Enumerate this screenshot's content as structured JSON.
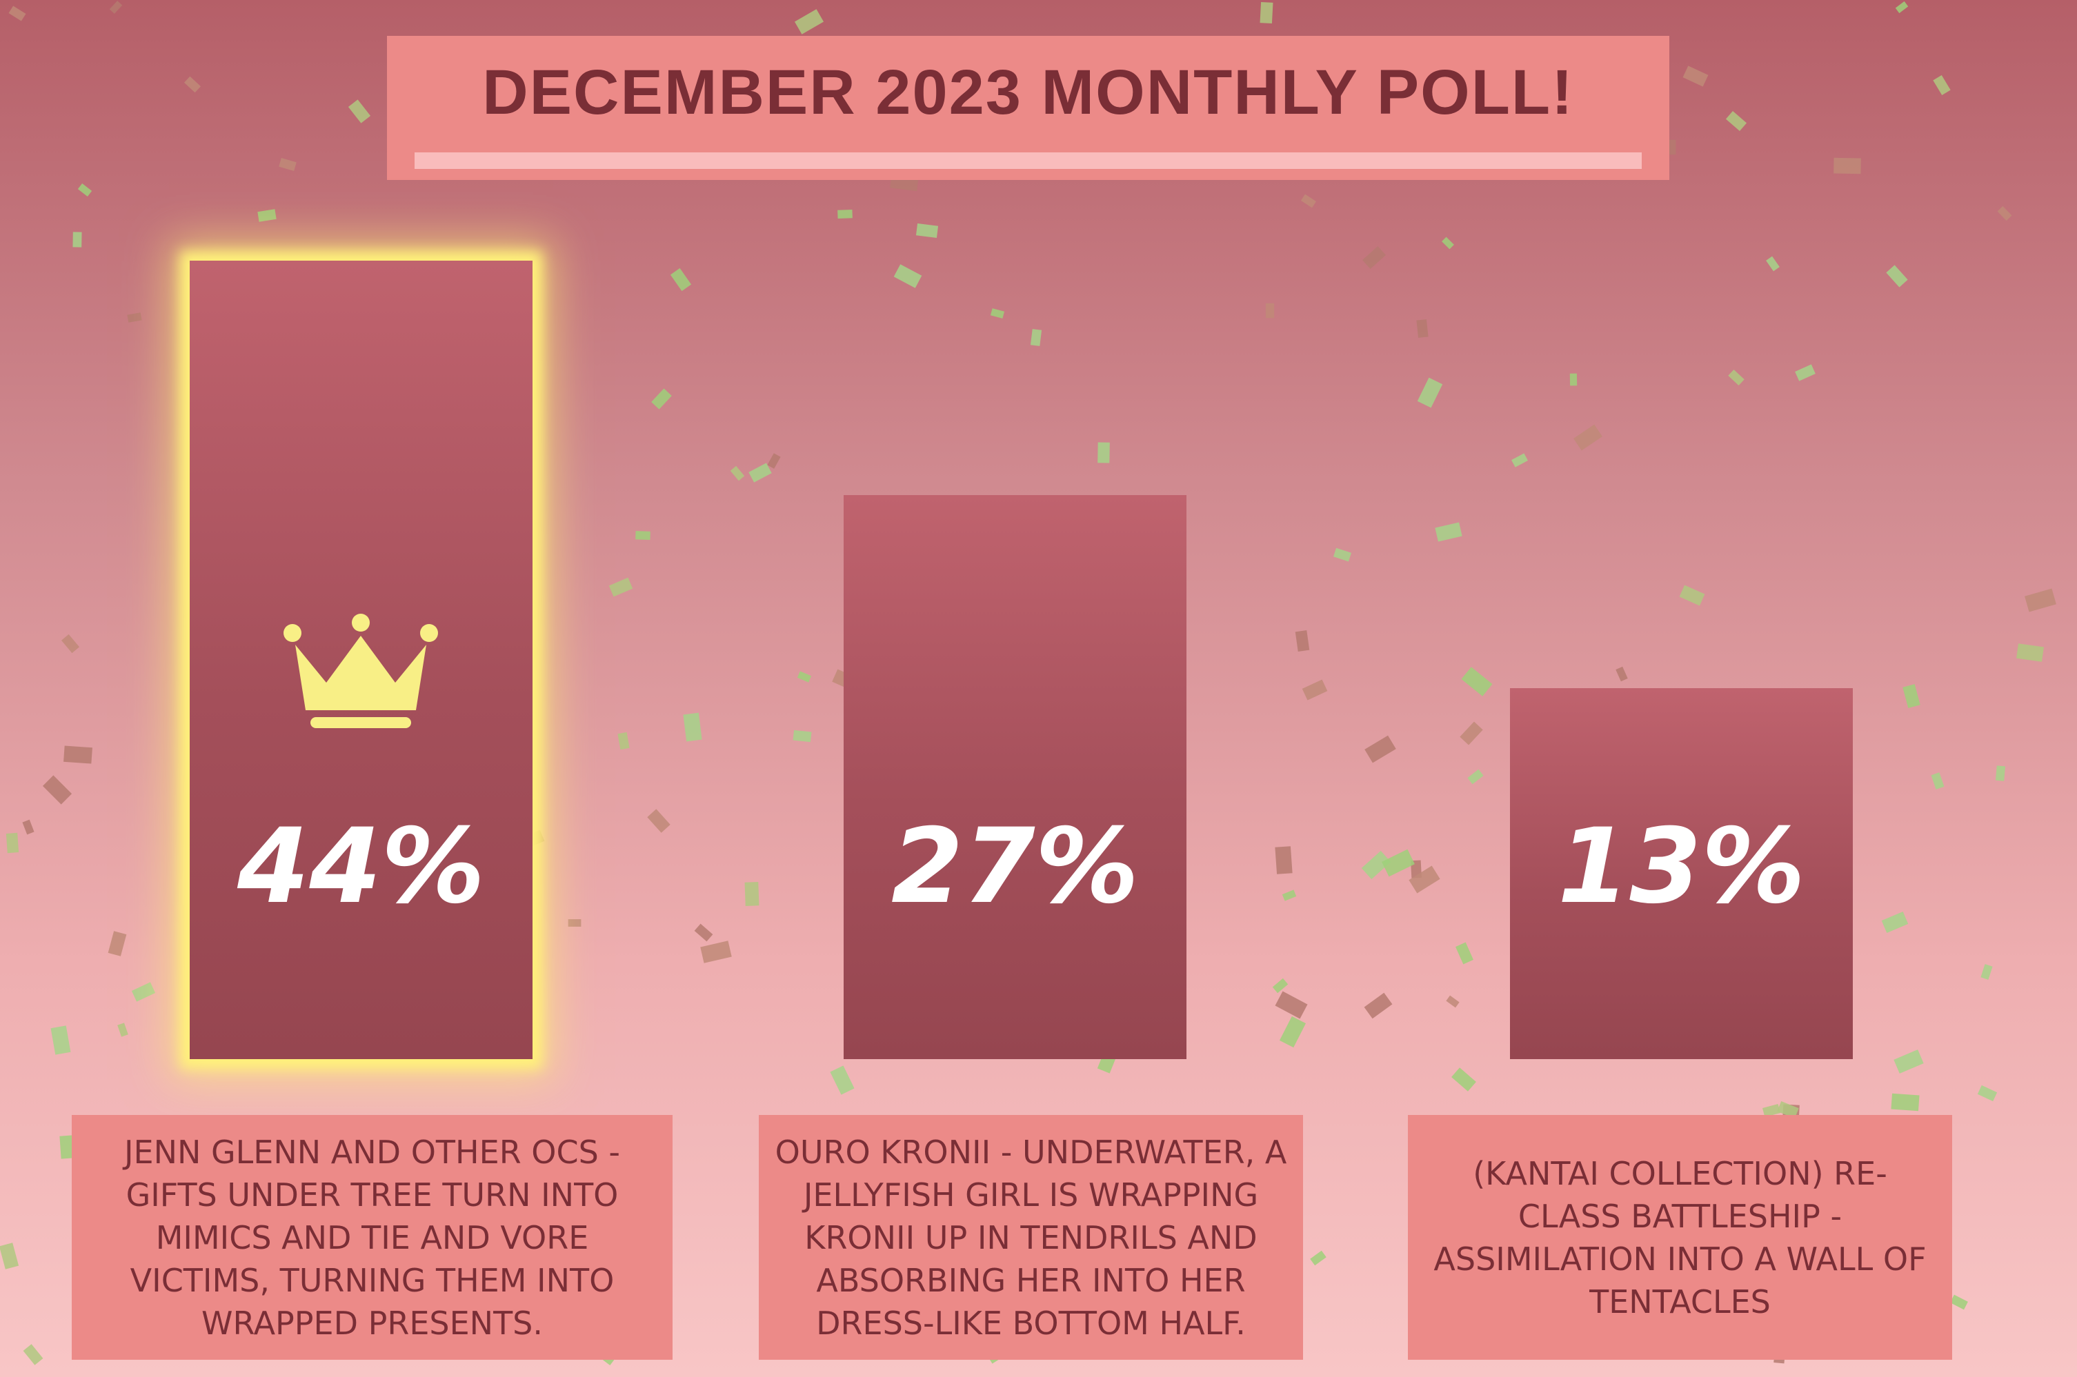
{
  "chart_data": {
    "type": "bar",
    "title": "DECEMBER 2023 MONTHLY POLL!",
    "categories": [
      "JENN GLENN AND OTHER OCS - GIFTS UNDER TREE TURN INTO MIMICS AND TIE AND VORE VICTIMS, TURNING THEM INTO WRAPPED PRESENTS.",
      "OURO KRONII - UNDERWATER, A JELLYFISH GIRL IS WRAPPING KRONII UP IN TENDRILS AND ABSORBING HER INTO HER DRESS-LIKE BOTTOM HALF.",
      "(KANTAI COLLECTION) RE-CLASS BATTLESHIP - ASSIMILATION INTO A WALL OF TENTACLES"
    ],
    "values": [
      44,
      27,
      13
    ],
    "value_labels": [
      "44%",
      "27%",
      "13%"
    ],
    "color": "#a44f5a"
  }
}
